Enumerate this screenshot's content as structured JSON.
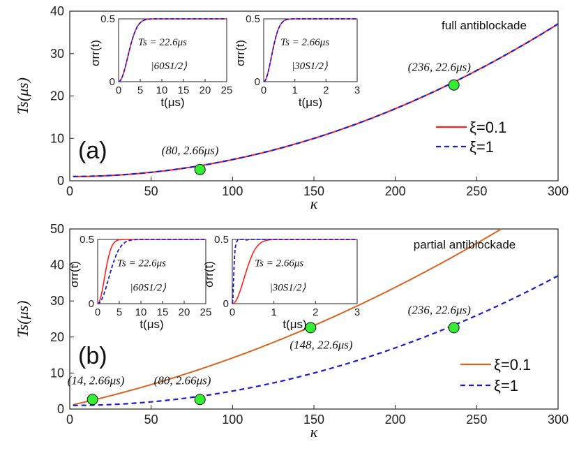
{
  "colors": {
    "red": "#ff1f1f",
    "orange": "#d9641e",
    "blue": "#1a1ad6",
    "marker": "#33ee33",
    "axis": "#222222"
  },
  "chart_data": [
    {
      "id": "a",
      "type": "line",
      "panel_label": "(a)",
      "title": "full antiblockade",
      "xlabel": "κ",
      "ylabel": "Ts(μs)",
      "xlim": [
        0,
        300
      ],
      "ylim": [
        0,
        40
      ],
      "xticks": [
        0,
        50,
        100,
        150,
        200,
        250,
        300
      ],
      "yticks": [
        0,
        10,
        20,
        30,
        40
      ],
      "legend_position": "right",
      "series": [
        {
          "name": "ξ=0.1",
          "style": "solid",
          "color": "red",
          "formula": "1 + 0.0004*k^2"
        },
        {
          "name": "ξ=1",
          "style": "dashed",
          "color": "blue",
          "formula": "1 + 0.0004*k^2"
        }
      ],
      "points": [
        {
          "x": 80,
          "y": 2.66,
          "label": "(80, 2.66μs)"
        },
        {
          "x": 236,
          "y": 22.6,
          "label": "(236, 22.6μs)"
        }
      ],
      "insets": [
        {
          "xlabel": "t(μs)",
          "ylabel": "σrr(t)",
          "xlim": [
            0,
            25
          ],
          "ylim": [
            0,
            0.5
          ],
          "xticks": [
            0,
            5,
            10,
            15,
            20,
            25
          ],
          "yticks": [
            0,
            0.5
          ],
          "annotation": "Ts = 22.6μs",
          "state": "|60S1/2⟩",
          "series": [
            {
              "name": "ξ=0.1",
              "style": "solid",
              "color": "red",
              "tau": 3.0,
              "overshoot": false
            },
            {
              "name": "ξ=1",
              "style": "dashed",
              "color": "blue",
              "tau": 3.0,
              "overshoot": false
            }
          ]
        },
        {
          "xlabel": "t(μs)",
          "ylabel": "σrr(t)",
          "xlim": [
            0,
            3
          ],
          "ylim": [
            0,
            0.5
          ],
          "xticks": [
            0,
            1,
            2,
            3
          ],
          "yticks": [
            0,
            0.5
          ],
          "annotation": "Ts = 2.66μs",
          "state": "|30S1/2⟩",
          "series": [
            {
              "name": "ξ=0.1",
              "style": "solid",
              "color": "red",
              "tau": 0.35,
              "overshoot": false
            },
            {
              "name": "ξ=1",
              "style": "dashed",
              "color": "blue",
              "tau": 0.35,
              "overshoot": false
            }
          ]
        }
      ]
    },
    {
      "id": "b",
      "type": "line",
      "panel_label": "(b)",
      "title": "partial antiblockade",
      "xlabel": "κ",
      "ylabel": "Ts(μs)",
      "xlim": [
        0,
        300
      ],
      "ylim": [
        0,
        50
      ],
      "xticks": [
        0,
        50,
        100,
        150,
        200,
        250,
        300
      ],
      "yticks": [
        0,
        10,
        20,
        30,
        40,
        50
      ],
      "legend_position": "right",
      "series": [
        {
          "name": "ξ=0.1",
          "style": "solid",
          "color": "orange",
          "formula": "1 + 0.1*k + 0.00032*k^2"
        },
        {
          "name": "ξ=1",
          "style": "dashed",
          "color": "blue",
          "formula": "1 + 0.0004*k^2"
        }
      ],
      "points": [
        {
          "x": 14,
          "y": 2.66,
          "label": "(14, 2.66μs)"
        },
        {
          "x": 80,
          "y": 2.66,
          "label": "(80, 2.66μs)"
        },
        {
          "x": 148,
          "y": 22.6,
          "label": "(148, 22.6μs)"
        },
        {
          "x": 236,
          "y": 22.6,
          "label": "(236, 22.6μs)"
        }
      ],
      "insets": [
        {
          "xlabel": "t(μs)",
          "ylabel": "σrr(t)",
          "xlim": [
            0,
            25
          ],
          "ylim": [
            0,
            0.5
          ],
          "xticks": [
            0,
            5,
            10,
            15,
            20,
            25
          ],
          "yticks": [
            0,
            0.5
          ],
          "annotation": "Ts = 22.6μs",
          "state": "|60S1/2⟩",
          "series": [
            {
              "name": "ξ=0.1",
              "style": "solid",
              "color": "red",
              "tau": 2.2,
              "overshoot": false
            },
            {
              "name": "ξ=1",
              "style": "dashed",
              "color": "blue",
              "tau": 3.6,
              "overshoot": false
            }
          ]
        },
        {
          "xlabel": "t(μs)",
          "ylabel": "σrr(t)",
          "xlim": [
            0,
            3
          ],
          "ylim": [
            0,
            0.5
          ],
          "xticks": [
            0,
            1,
            2,
            3
          ],
          "yticks": [
            0,
            0.5
          ],
          "annotation": "Ts = 2.66μs",
          "state": "|30S1/2⟩",
          "series": [
            {
              "name": "ξ=0.1",
              "style": "solid",
              "color": "red",
              "tau": 0.4,
              "overshoot": false
            },
            {
              "name": "ξ=1",
              "style": "dashed",
              "color": "blue",
              "tau": 0.04,
              "overshoot": true
            }
          ]
        }
      ]
    }
  ]
}
